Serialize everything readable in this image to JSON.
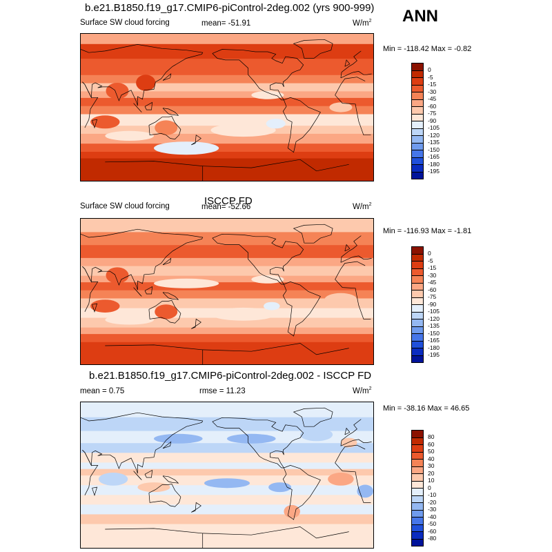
{
  "season": "ANN",
  "panels": [
    {
      "title": "b.e21.B1850.f19_g17.CMIP6-piControl-2deg.002 (yrs 900-999)",
      "left_label": "Surface SW cloud forcing",
      "center_label": "mean= -51.91",
      "units": "W/m",
      "units_sup": "2",
      "minmax": "Min = -118.42 Max =  -0.82",
      "scale": "cloud",
      "colorbar": {
        "labels": [
          "0",
          "-5",
          "-15",
          "-30",
          "-45",
          "-60",
          "-75",
          "-90",
          "-105",
          "-120",
          "-135",
          "-150",
          "-165",
          "-180",
          "-195"
        ],
        "colors": [
          "#8b1200",
          "#c12a00",
          "#dd3d12",
          "#ec5a2e",
          "#f58356",
          "#fba784",
          "#fdc9ad",
          "#fee7d8",
          "#e4effb",
          "#bdd6f7",
          "#94b8f2",
          "#6f9bee",
          "#4676e9",
          "#2050db",
          "#0a2cc0",
          "#00139a"
        ]
      }
    },
    {
      "title": "ISCCP FD",
      "left_label": "Surface SW cloud forcing",
      "center_label": "mean= -52.66",
      "units": "W/m",
      "units_sup": "2",
      "minmax": "Min = -116.93 Max =  -1.81",
      "scale": "cloud",
      "colorbar": {
        "labels": [
          "0",
          "-5",
          "-15",
          "-30",
          "-45",
          "-60",
          "-75",
          "-90",
          "-105",
          "-120",
          "-135",
          "-150",
          "-165",
          "-180",
          "-195"
        ],
        "colors": [
          "#8b1200",
          "#c12a00",
          "#dd3d12",
          "#ec5a2e",
          "#f58356",
          "#fba784",
          "#fdc9ad",
          "#fee7d8",
          "#e4effb",
          "#bdd6f7",
          "#94b8f2",
          "#6f9bee",
          "#4676e9",
          "#2050db",
          "#0a2cc0",
          "#00139a"
        ]
      }
    },
    {
      "title": "b.e21.B1850.f19_g17.CMIP6-piControl-2deg.002 - ISCCP FD",
      "left_label": "mean =    0.75",
      "center_label": "rmse =  11.23",
      "units": "W/m",
      "units_sup": "2",
      "minmax": "Min = -38.16 Max =  46.65",
      "scale": "diff",
      "colorbar": {
        "labels": [
          "80",
          "60",
          "50",
          "40",
          "30",
          "20",
          "10",
          "0",
          "-10",
          "-20",
          "-30",
          "-40",
          "-50",
          "-60",
          "-80"
        ],
        "colors": [
          "#8b1200",
          "#c12a00",
          "#dd3d12",
          "#ec5a2e",
          "#f58356",
          "#fba784",
          "#fdc9ad",
          "#fee7d8",
          "#e4effb",
          "#bdd6f7",
          "#94b8f2",
          "#6f9bee",
          "#4676e9",
          "#2050db",
          "#0a2cc0",
          "#00139a"
        ]
      }
    }
  ],
  "chart_data": [
    {
      "type": "heatmap",
      "title": "b.e21.B1850.f19_g17.CMIP6-piControl-2deg.002 (yrs 900-999)",
      "variable": "Surface SW cloud forcing",
      "units": "W/m2",
      "mean": -51.91,
      "min": -118.42,
      "max": -0.82,
      "contour_levels": [
        0,
        -5,
        -15,
        -30,
        -45,
        -60,
        -75,
        -90,
        -105,
        -120,
        -135,
        -150,
        -165,
        -180,
        -195
      ]
    },
    {
      "type": "heatmap",
      "title": "ISCCP FD",
      "variable": "Surface SW cloud forcing",
      "units": "W/m2",
      "mean": -52.66,
      "min": -116.93,
      "max": -1.81,
      "contour_levels": [
        0,
        -5,
        -15,
        -30,
        -45,
        -60,
        -75,
        -90,
        -105,
        -120,
        -135,
        -150,
        -165,
        -180,
        -195
      ]
    },
    {
      "type": "heatmap",
      "title": "b.e21.B1850.f19_g17.CMIP6-piControl-2deg.002 - ISCCP FD",
      "units": "W/m2",
      "mean": 0.75,
      "rmse": 11.23,
      "min": -38.16,
      "max": 46.65,
      "contour_levels": [
        80,
        60,
        50,
        40,
        30,
        20,
        10,
        0,
        -10,
        -20,
        -30,
        -40,
        -50,
        -60,
        -80
      ]
    }
  ]
}
